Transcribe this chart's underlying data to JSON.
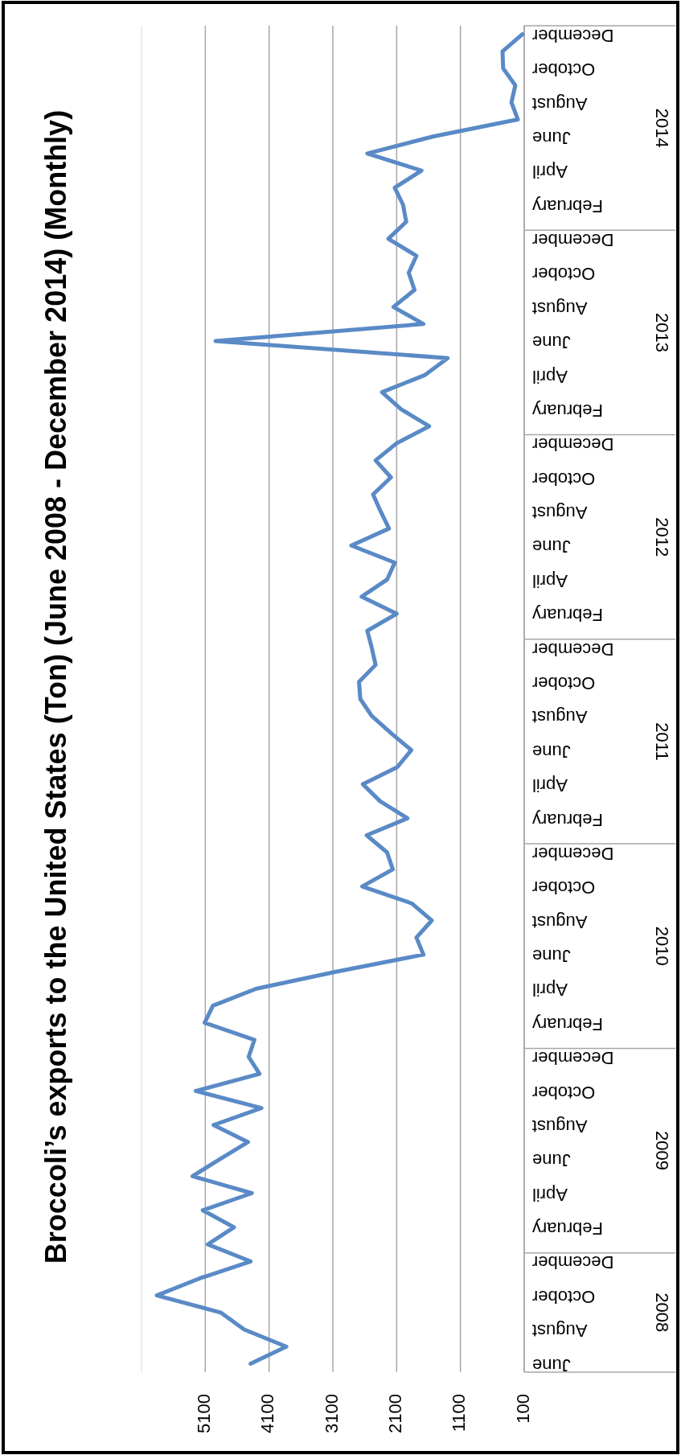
{
  "chart_data": {
    "type": "line",
    "title": "Broccoli’s exports to the United States (Ton) (June 2008 - December 2014) (Monthly)",
    "orientation": "horizontal",
    "categories": [
      "December",
      null,
      "October",
      null,
      "August",
      null,
      "June",
      null,
      "April",
      null,
      "February",
      null,
      "December",
      null,
      "October",
      null,
      "August",
      null,
      "June",
      null,
      "April",
      null,
      "February",
      null,
      "December",
      null,
      "October",
      null,
      "August",
      null,
      "June",
      null,
      "April",
      null,
      "February",
      null,
      "December",
      null,
      "October",
      null,
      "August",
      null,
      "June",
      null,
      "April",
      null,
      "February",
      null,
      "December",
      null,
      "October",
      null,
      "August",
      null,
      "June",
      null,
      "April",
      null,
      "February",
      null,
      "December",
      null,
      "October",
      null,
      "August",
      null,
      "June",
      null,
      "April",
      null,
      "February",
      null,
      "December",
      null,
      "October",
      null,
      "August",
      null,
      "June"
    ],
    "series": [
      {
        "color": "#5a8ac6",
        "values": [
          130,
          440,
          430,
          240,
          300,
          200,
          1530,
          2560,
          1710,
          2130,
          2000,
          1950,
          2230,
          1790,
          1910,
          1820,
          2150,
          1680,
          4940,
          1300,
          1660,
          2330,
          2030,
          1590,
          2100,
          2430,
          2190,
          2470,
          2350,
          2220,
          2810,
          2130,
          2250,
          2650,
          2100,
          2560,
          2490,
          2430,
          2690,
          2670,
          2490,
          2190,
          1870,
          2090,
          2630,
          2360,
          1930,
          2570,
          2250,
          2160,
          2640,
          1860,
          1550,
          1790,
          1680,
          3040,
          4300,
          4980,
          5110,
          4330,
          4420,
          4250,
          5250,
          4220,
          4970,
          4430,
          4870,
          5300,
          4370,
          5140,
          4650,
          5060,
          4390,
          5190,
          5860,
          4860,
          4490,
          3830,
          4390
        ]
      }
    ],
    "xlim": [
      6100,
      100
    ],
    "xticks": [
      5100,
      4100,
      3100,
      2100,
      1100,
      100
    ],
    "grid": "x",
    "annotations": [
      "2014",
      "2013",
      "2012",
      "2011",
      "2010",
      "2009",
      "2008"
    ]
  }
}
